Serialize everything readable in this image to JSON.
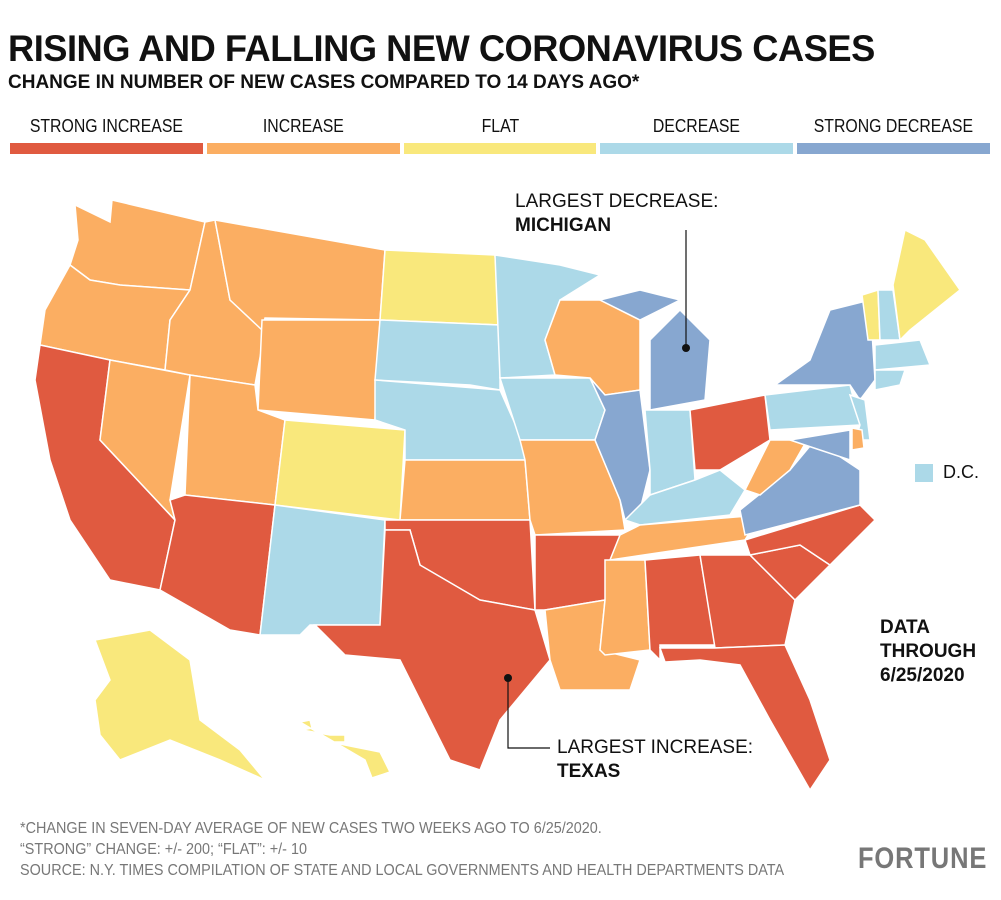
{
  "header": {
    "title": "RISING AND FALLING NEW CORONAVIRUS CASES",
    "subtitle": "CHANGE IN NUMBER OF NEW CASES COMPARED TO 14 DAYS AGO*"
  },
  "legend": [
    {
      "label": "STRONG INCREASE",
      "color": "#e05a40"
    },
    {
      "label": "INCREASE",
      "color": "#fbae62"
    },
    {
      "label": "FLAT",
      "color": "#f9e87c"
    },
    {
      "label": "DECREASE",
      "color": "#acd9e8"
    },
    {
      "label": "STRONG DECREASE",
      "color": "#87a7d0"
    }
  ],
  "states": {
    "WA": 1,
    "OR": 1,
    "CA": 0,
    "NV": 1,
    "ID": 1,
    "MT": 1,
    "WY": 1,
    "UT": 1,
    "CO": 2,
    "AZ": 0,
    "NM": 3,
    "ND": 2,
    "SD": 3,
    "NE": 3,
    "KS": 1,
    "OK": 0,
    "TX": 0,
    "MN": 3,
    "IA": 3,
    "MO": 1,
    "AR": 0,
    "LA": 1,
    "WI": 1,
    "IL": 4,
    "MI": 4,
    "MI_UP": 4,
    "IN": 3,
    "OH": 0,
    "KY": 3,
    "TN": 1,
    "MS": 1,
    "AL": 0,
    "GA": 0,
    "FL": 0,
    "SC": 0,
    "NC": 0,
    "VA": 4,
    "WV": 1,
    "PA": 3,
    "NY": 4,
    "NJ": 3,
    "MD": 4,
    "DE": 1,
    "VT": 2,
    "NH": 3,
    "ME": 2,
    "MA": 3,
    "CT": 3,
    "AK": 2,
    "HI": 2
  },
  "dc": {
    "label": "D.C.",
    "category": 3
  },
  "annotations": {
    "decrease_label": "LARGEST DECREASE:",
    "decrease_state": "MICHIGAN",
    "increase_label": "LARGEST INCREASE:",
    "increase_state": "TEXAS",
    "data_through": [
      "DATA",
      "THROUGH",
      "6/25/2020"
    ]
  },
  "footer": [
    "*CHANGE IN SEVEN-DAY AVERAGE OF NEW CASES TWO WEEKS AGO TO 6/25/2020.",
    "“STRONG” CHANGE: +/- 200; “FLAT”: +/- 10",
    "SOURCE: N.Y. TIMES COMPILATION OF STATE AND LOCAL GOVERNMENTS AND HEALTH DEPARTMENTS DATA"
  ],
  "logo": "FORTUNE"
}
